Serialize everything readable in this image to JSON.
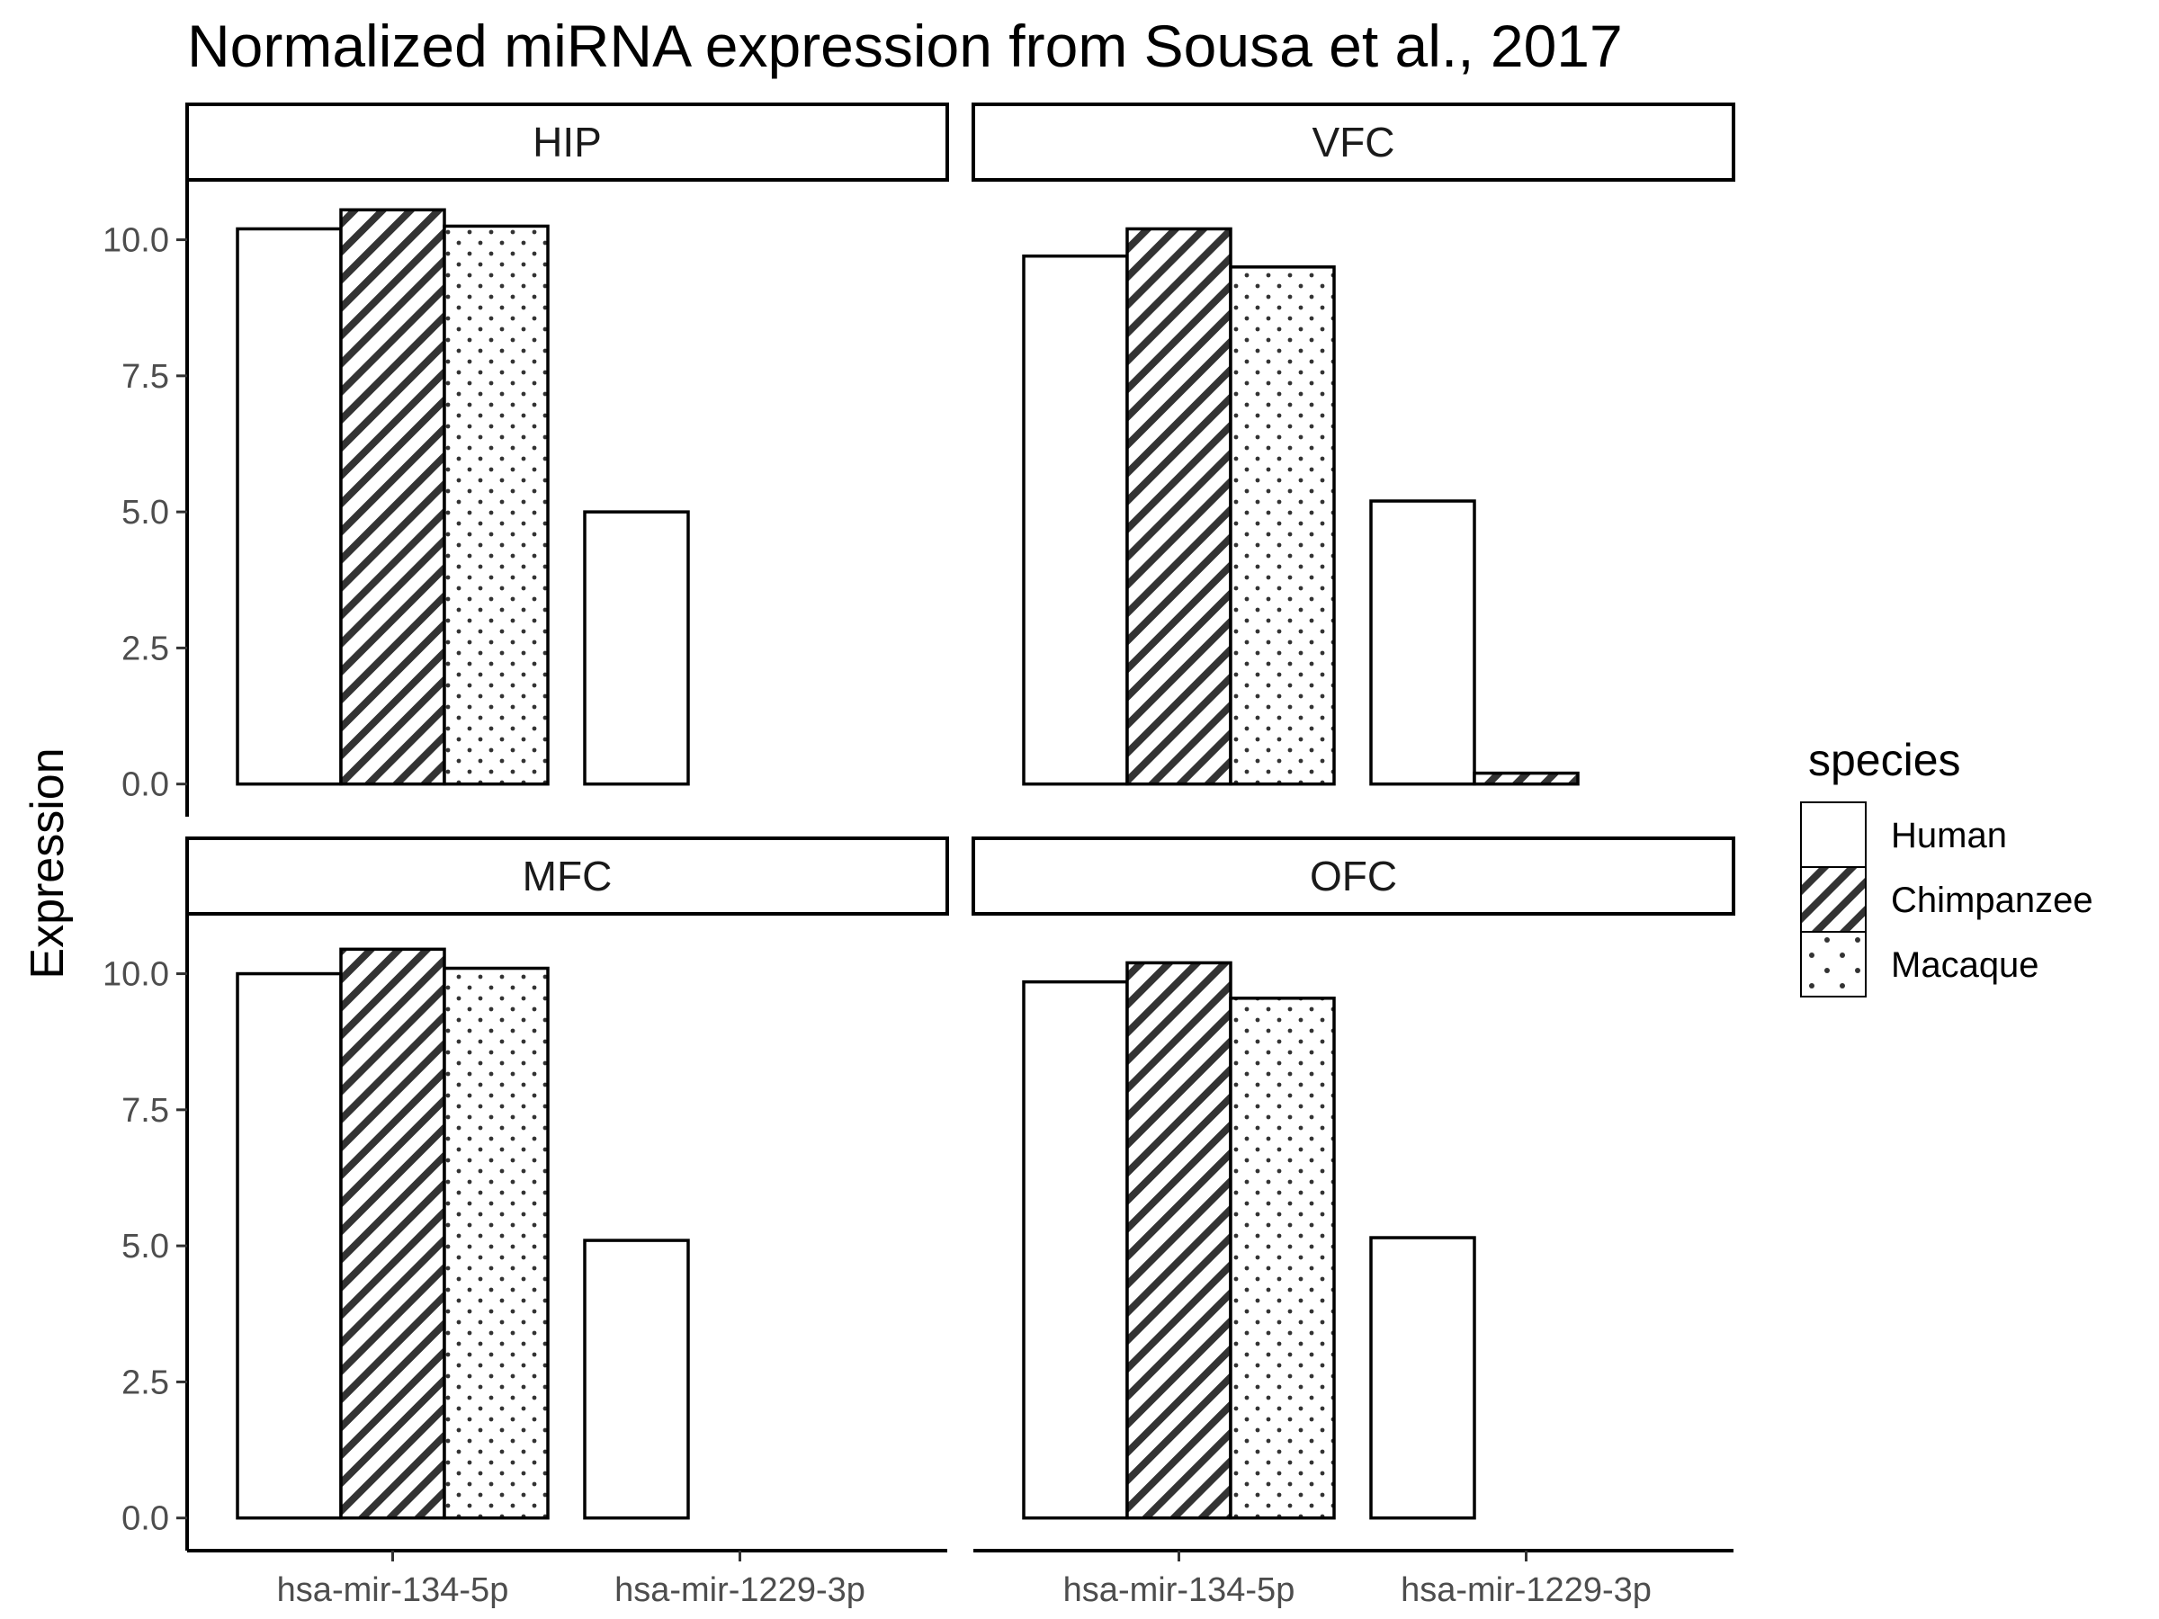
{
  "chart_data": {
    "type": "bar",
    "title": "Normalized miRNA expression from Sousa et al., 2017",
    "ylabel": "Expression",
    "xlabel": "",
    "ylim": [
      -0.6,
      11.1
    ],
    "yticks": [
      "0.0",
      "2.5",
      "5.0",
      "7.5",
      "10.0"
    ],
    "categories": [
      "hsa-mir-134-5p",
      "hsa-mir-1229-3p"
    ],
    "grid": false,
    "legend": {
      "title": "species",
      "placement": "right",
      "entries": [
        "Human",
        "Chimpanzee",
        "Macaque"
      ]
    },
    "panels": [
      {
        "name": "HIP",
        "series": [
          {
            "name": "Human",
            "values": [
              10.2,
              5.0
            ]
          },
          {
            "name": "Chimpanzee",
            "values": [
              10.55,
              0.0
            ]
          },
          {
            "name": "Macaque",
            "values": [
              10.25,
              0.0
            ]
          }
        ]
      },
      {
        "name": "VFC",
        "series": [
          {
            "name": "Human",
            "values": [
              9.7,
              5.2
            ]
          },
          {
            "name": "Chimpanzee",
            "values": [
              10.2,
              0.2
            ]
          },
          {
            "name": "Macaque",
            "values": [
              9.5,
              0.0
            ]
          }
        ]
      },
      {
        "name": "MFC",
        "series": [
          {
            "name": "Human",
            "values": [
              10.0,
              5.1
            ]
          },
          {
            "name": "Chimpanzee",
            "values": [
              10.45,
              0.0
            ]
          },
          {
            "name": "Macaque",
            "values": [
              10.1,
              0.0
            ]
          }
        ]
      },
      {
        "name": "OFC",
        "series": [
          {
            "name": "Human",
            "values": [
              9.85,
              5.15
            ]
          },
          {
            "name": "Chimpanzee",
            "values": [
              10.2,
              0.0
            ]
          },
          {
            "name": "Macaque",
            "values": [
              9.55,
              0.0
            ]
          }
        ]
      }
    ]
  }
}
